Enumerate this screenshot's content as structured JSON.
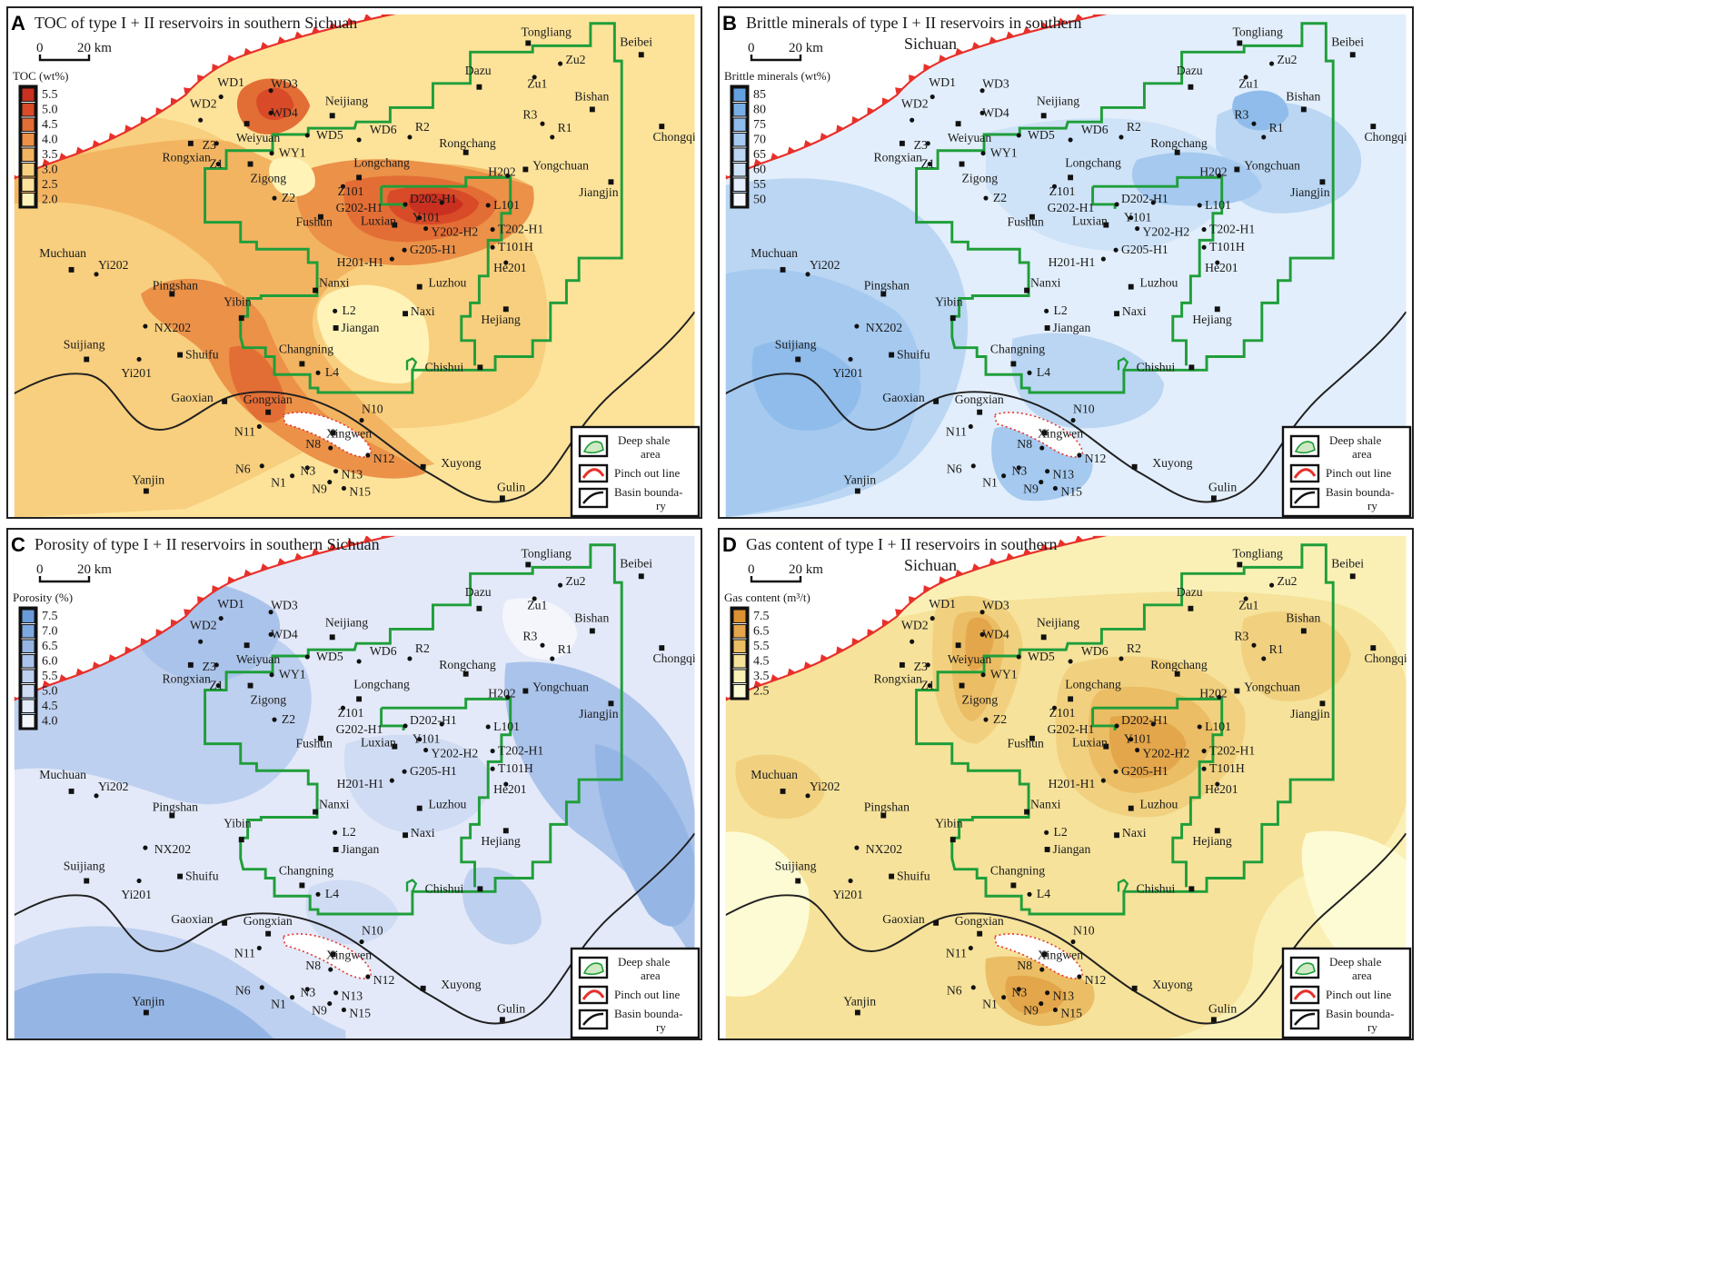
{
  "colors": {
    "toc": [
      "#fff3b8",
      "#fde39a",
      "#f8cf7e",
      "#f3b462",
      "#eb9148",
      "#e36e35",
      "#d84a28",
      "#c93020"
    ],
    "brittle": [
      "#f5f9ff",
      "#e2eefb",
      "#cfe3f8",
      "#bad6f3",
      "#a5c9ef",
      "#8fbcea",
      "#79aee5",
      "#63a0df"
    ],
    "porosity": [
      "#f4f6fc",
      "#e3e9f8",
      "#d0dcf3",
      "#bed0ef",
      "#aac3ea",
      "#95b6e5",
      "#7ea9e0",
      "#6a9bdb"
    ],
    "gas": [
      "#fdfbd4",
      "#faf0b6",
      "#f6e29a",
      "#f1d17f",
      "#ebbd64",
      "#e4a64a",
      "#dc9133"
    ],
    "deep_shale_line": "#1f9e3a",
    "pinch_out": "#e8302a",
    "basin_boundary": "#202020"
  },
  "panels": [
    {
      "letter": "A",
      "title": "TOC of type I + II reservoirs in southern Sichuan",
      "title_line2": "",
      "scale_zero": "0",
      "scale_km": "20 km",
      "legend_title": "TOC (wt%)",
      "legend_values": [
        "5.5",
        "5.0",
        "4.5",
        "4.0",
        "3.5",
        "3.0",
        "2.5",
        "2.0"
      ],
      "scheme": "toc"
    },
    {
      "letter": "B",
      "title": "Brittle minerals of type I + II reservoirs in southern",
      "title_line2": "Sichuan",
      "scale_zero": "0",
      "scale_km": "20 km",
      "legend_title": "Brittle minerals (wt%)",
      "legend_values": [
        "85",
        "80",
        "75",
        "70",
        "65",
        "60",
        "55",
        "50"
      ],
      "scheme": "brittle"
    },
    {
      "letter": "C",
      "title": "Porosity of type I + II reservoirs in southern Sichuan",
      "title_line2": "",
      "scale_zero": "0",
      "scale_km": "20 km",
      "legend_title": "Porosity (%)",
      "legend_values": [
        "7.5",
        "7.0",
        "6.5",
        "6.0",
        "5.5",
        "5.0",
        "4.5",
        "4.0"
      ],
      "scheme": "porosity"
    },
    {
      "letter": "D",
      "title": "Gas content of type I + II reservoirs in southern",
      "title_line2": "Sichuan",
      "scale_zero": "0",
      "scale_km": "20 km",
      "legend_title": "Gas content (m³/t)",
      "legend_values": [
        "7.5",
        "6.5",
        "5.5",
        "4.5",
        "3.5",
        "2.5"
      ],
      "scheme": "gas"
    }
  ],
  "map_legend": {
    "deep_shale": "Deep shale",
    "deep_shale_2": "area",
    "pinch_out": "Pinch out line",
    "basin_boundary": "Basin bounda-",
    "basin_boundary_2": "ry"
  },
  "wells": [
    {
      "label": "WD1"
    },
    {
      "label": "WD3"
    },
    {
      "label": "WD4"
    },
    {
      "label": "WD2"
    },
    {
      "label": "Z3"
    },
    {
      "label": "Z1"
    },
    {
      "label": "WY1"
    },
    {
      "label": "WD5"
    },
    {
      "label": "WD6"
    },
    {
      "label": "R2"
    },
    {
      "label": "Z2"
    },
    {
      "label": "Z101"
    },
    {
      "label": "G202-H1"
    },
    {
      "label": "D202-H1"
    },
    {
      "label": "Y101"
    },
    {
      "label": "Y202-H2"
    },
    {
      "label": "G205-H1"
    },
    {
      "label": "H201-H1"
    },
    {
      "label": "H202"
    },
    {
      "label": "L101"
    },
    {
      "label": "T202-H1"
    },
    {
      "label": "T101H"
    },
    {
      "label": "He201"
    },
    {
      "label": "Zu1"
    },
    {
      "label": "Zu2"
    },
    {
      "label": "R3"
    },
    {
      "label": "R1"
    },
    {
      "label": "Yi202"
    },
    {
      "label": "NX202"
    },
    {
      "label": "Yi201"
    },
    {
      "label": "L2"
    },
    {
      "label": "L4"
    },
    {
      "label": "N10"
    },
    {
      "label": "N11"
    },
    {
      "label": "N8"
    },
    {
      "label": "N12"
    },
    {
      "label": "N6"
    },
    {
      "label": "N3"
    },
    {
      "label": "N13"
    },
    {
      "label": "N1"
    },
    {
      "label": "N9"
    },
    {
      "label": "N15"
    }
  ],
  "towns": [
    {
      "label": "Tongliang"
    },
    {
      "label": "Beibei"
    },
    {
      "label": "Dazu"
    },
    {
      "label": "Bishan"
    },
    {
      "label": "Chongqing"
    },
    {
      "label": "Neijiang"
    },
    {
      "label": "Weiyuan"
    },
    {
      "label": "Rongxian"
    },
    {
      "label": "Zigong"
    },
    {
      "label": "Longchang"
    },
    {
      "label": "Rongchang"
    },
    {
      "label": "Yongchuan"
    },
    {
      "label": "Jiangjin"
    },
    {
      "label": "Luxian"
    },
    {
      "label": "Fushun"
    },
    {
      "label": "Muchuan"
    },
    {
      "label": "Pingshan"
    },
    {
      "label": "Yibin"
    },
    {
      "label": "Nanxi"
    },
    {
      "label": "Luzhou"
    },
    {
      "label": "Jiangan"
    },
    {
      "label": "Naxi"
    },
    {
      "label": "Hejiang"
    },
    {
      "label": "Suijiang"
    },
    {
      "label": "Shuifu"
    },
    {
      "label": "Changning"
    },
    {
      "label": "Chishui"
    },
    {
      "label": "Gaoxian"
    },
    {
      "label": "Gongxian"
    },
    {
      "label": "Xingwen"
    },
    {
      "label": "Xuyong"
    },
    {
      "label": "Gulin"
    },
    {
      "label": "Yanjin"
    }
  ]
}
